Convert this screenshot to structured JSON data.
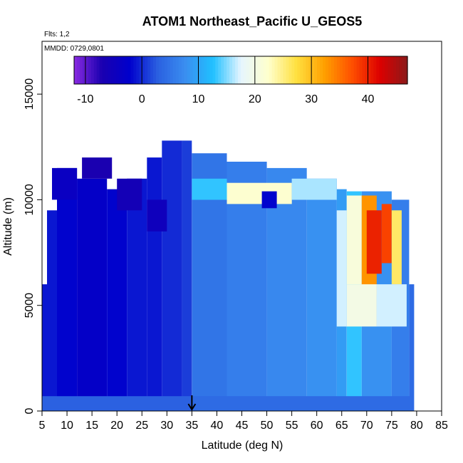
{
  "chart_data": {
    "type": "heatmap",
    "title": "ATOM1 Northeast_Pacific U_GEOS5",
    "flights_label": "Flts: 1,2",
    "mmdd_label": "MMDD: 0729,0801",
    "xlabel": "Latitude (deg N)",
    "ylabel": "Altitude (m)",
    "xlim": [
      5,
      85
    ],
    "ylim": [
      0,
      17500
    ],
    "x_ticks": [
      5,
      10,
      15,
      20,
      25,
      30,
      35,
      40,
      45,
      50,
      55,
      60,
      65,
      70,
      75,
      80,
      85
    ],
    "y_ticks": [
      0,
      5000,
      10000,
      15000
    ],
    "colorbar": {
      "range": [
        -12,
        47
      ],
      "ticks": [
        -10,
        0,
        10,
        20,
        30,
        40
      ],
      "colors": [
        "#8a2be2",
        "#1a00b0",
        "#0000cc",
        "#2a5fe0",
        "#3a8ef0",
        "#20c0ff",
        "#e6f5ff",
        "#ffffcc",
        "#ffe040",
        "#ffa000",
        "#ff5000",
        "#dd0000",
        "#8b1a1a"
      ],
      "placement": "top-inside"
    },
    "grid": false,
    "marker": {
      "x": 35,
      "label": "arrow"
    },
    "regions": [
      {
        "x": [
          5,
          6
        ],
        "y": [
          0,
          6000
        ],
        "value": -1
      },
      {
        "x": [
          6,
          8
        ],
        "y": [
          0,
          9500
        ],
        "value": -1
      },
      {
        "x": [
          8,
          12
        ],
        "y": [
          0,
          11500
        ],
        "value": -2
      },
      {
        "x": [
          12,
          18
        ],
        "y": [
          0,
          11000
        ],
        "value": -3
      },
      {
        "x": [
          18,
          22
        ],
        "y": [
          0,
          10500
        ],
        "value": -2
      },
      {
        "x": [
          22,
          26
        ],
        "y": [
          0,
          11000
        ],
        "value": -1
      },
      {
        "x": [
          26,
          29
        ],
        "y": [
          0,
          12000
        ],
        "value": -1
      },
      {
        "x": [
          29,
          33
        ],
        "y": [
          0,
          12800
        ],
        "value": 0
      },
      {
        "x": [
          33,
          35
        ],
        "y": [
          0,
          12800
        ],
        "value": 1
      },
      {
        "x": [
          13,
          19
        ],
        "y": [
          11000,
          12000
        ],
        "value": -7
      },
      {
        "x": [
          20,
          25
        ],
        "y": [
          9500,
          11000
        ],
        "value": -6
      },
      {
        "x": [
          26,
          30
        ],
        "y": [
          8500,
          10000
        ],
        "value": -5
      },
      {
        "x": [
          7,
          12
        ],
        "y": [
          10000,
          11500
        ],
        "value": -4
      },
      {
        "x": [
          35,
          42
        ],
        "y": [
          0,
          12200
        ],
        "value": 5
      },
      {
        "x": [
          42,
          50
        ],
        "y": [
          0,
          11800
        ],
        "value": 6
      },
      {
        "x": [
          50,
          58
        ],
        "y": [
          0,
          11500
        ],
        "value": 7
      },
      {
        "x": [
          58,
          64
        ],
        "y": [
          0,
          11000
        ],
        "value": 8
      },
      {
        "x": [
          64,
          66
        ],
        "y": [
          0,
          10500
        ],
        "value": 9
      },
      {
        "x": [
          66,
          69
        ],
        "y": [
          0,
          10400
        ],
        "value": 13
      },
      {
        "x": [
          69,
          75
        ],
        "y": [
          0,
          10400
        ],
        "value": 8
      },
      {
        "x": [
          75,
          78.5
        ],
        "y": [
          0,
          10000
        ],
        "value": 6
      },
      {
        "x": [
          78.5,
          79.5
        ],
        "y": [
          0,
          6000
        ],
        "value": 4
      },
      {
        "x": [
          35,
          42
        ],
        "y": [
          10000,
          11000
        ],
        "value": 13
      },
      {
        "x": [
          42,
          55
        ],
        "y": [
          9800,
          10800
        ],
        "value": 22
      },
      {
        "x": [
          55,
          64
        ],
        "y": [
          10000,
          11000
        ],
        "value": 16
      },
      {
        "x": [
          64,
          66
        ],
        "y": [
          4000,
          9500
        ],
        "value": 17
      },
      {
        "x": [
          66,
          69
        ],
        "y": [
          6000,
          10200
        ],
        "value": 21
      },
      {
        "x": [
          69,
          72
        ],
        "y": [
          5500,
          10200
        ],
        "value": 33
      },
      {
        "x": [
          70,
          73
        ],
        "y": [
          6500,
          9500
        ],
        "value": 40
      },
      {
        "x": [
          73,
          75
        ],
        "y": [
          7000,
          9800
        ],
        "value": 38
      },
      {
        "x": [
          75,
          77
        ],
        "y": [
          6000,
          9500
        ],
        "value": 26
      },
      {
        "x": [
          66,
          72
        ],
        "y": [
          4000,
          6000
        ],
        "value": 20
      },
      {
        "x": [
          72,
          78
        ],
        "y": [
          4000,
          6000
        ],
        "value": 17
      },
      {
        "x": [
          5,
          35
        ],
        "y": [
          0,
          700
        ],
        "value": 3
      },
      {
        "x": [
          35,
          79
        ],
        "y": [
          0,
          700
        ],
        "value": 4
      },
      {
        "x": [
          49,
          52
        ],
        "y": [
          9600,
          10400
        ],
        "value": -2
      }
    ]
  }
}
